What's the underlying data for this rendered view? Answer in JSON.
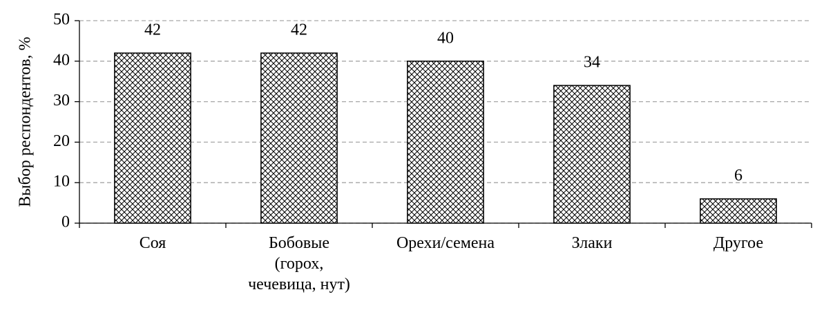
{
  "chart_data": {
    "type": "bar",
    "ylabel": "Выбор респондентов, %",
    "categories": [
      "Соя",
      "Бобовые (горох, чечевица, нут)",
      "Орехи/семена",
      "Злаки",
      "Другое"
    ],
    "values": [
      42,
      42,
      40,
      34,
      6
    ],
    "color": "#000000",
    "ylim": [
      0,
      50
    ],
    "yticks": [
      0,
      10,
      20,
      30,
      40,
      50
    ],
    "grid": true
  }
}
